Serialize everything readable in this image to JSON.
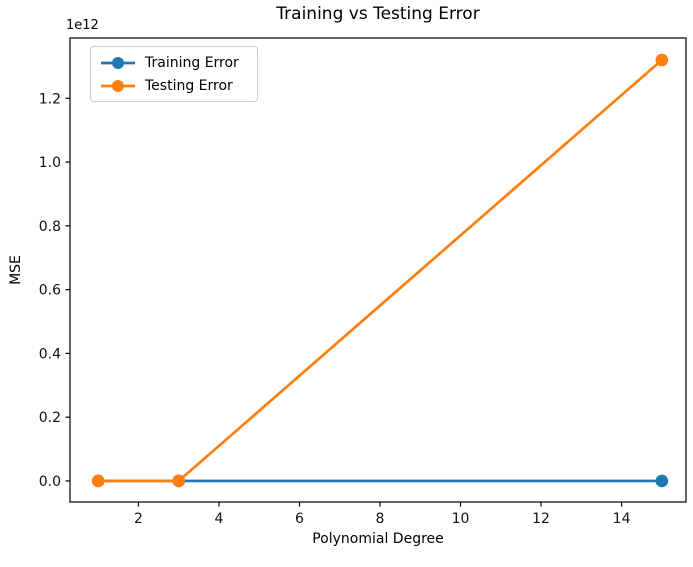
{
  "chart_data": {
    "type": "line",
    "title": "Training vs Testing Error",
    "xlabel": "Polynomial Degree",
    "ylabel": "MSE",
    "y_offset_label": "1e12",
    "x": [
      1,
      3,
      15
    ],
    "series": [
      {
        "name": "Training Error",
        "color": "#1f77b4",
        "values": [
          0,
          0,
          0
        ]
      },
      {
        "name": "Testing Error",
        "color": "#ff7f0e",
        "values": [
          0,
          0,
          1320000000000.0
        ]
      }
    ],
    "xlim": [
      0.3,
      15.6
    ],
    "ylim": [
      -66000000000.0,
      1389000000000.0
    ],
    "xticks": [
      2,
      4,
      6,
      8,
      10,
      12,
      14
    ],
    "yticks": [
      0,
      200000000000.0,
      400000000000.0,
      600000000000.0,
      800000000000.0,
      1000000000000.0,
      1200000000000.0
    ],
    "ytick_labels": [
      "0.0",
      "0.2",
      "0.4",
      "0.6",
      "0.8",
      "1.0",
      "1.2"
    ],
    "grid": false,
    "marker": "circle",
    "legend_position": "upper left",
    "axis_color": "#000000",
    "text_color": "#111111",
    "background_color": "#ffffff"
  }
}
